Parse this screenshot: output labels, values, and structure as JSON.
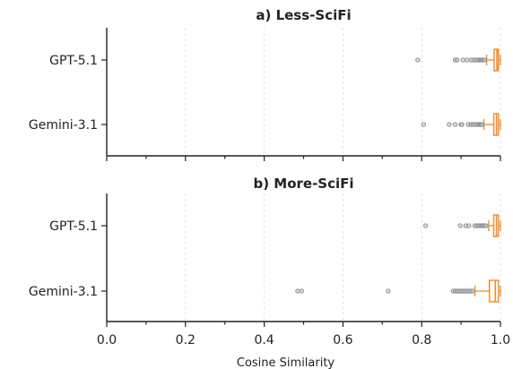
{
  "chart_data": [
    {
      "type": "boxplot",
      "title": "a) Less-SciFi",
      "orientation": "horizontal",
      "categories": [
        "GPT-5.1",
        "Gemini-3.1"
      ],
      "xlim": [
        0.0,
        1.0
      ],
      "grid": "x-dashed",
      "boxes": [
        {
          "name": "GPT-5.1",
          "whislo": 0.965,
          "q1": 0.984,
          "med": 0.991,
          "q3": 0.995,
          "whishi": 1.0,
          "fliers": [
            0.79,
            0.885,
            0.89,
            0.905,
            0.915,
            0.925,
            0.932,
            0.938,
            0.943,
            0.948,
            0.951,
            0.954,
            0.957,
            0.96
          ]
        },
        {
          "name": "Gemini-3.1",
          "whislo": 0.958,
          "q1": 0.983,
          "med": 0.99,
          "q3": 0.995,
          "whishi": 1.0,
          "fliers": [
            0.805,
            0.87,
            0.885,
            0.9,
            0.902,
            0.918,
            0.925,
            0.93,
            0.935,
            0.94,
            0.945,
            0.948,
            0.951,
            0.954
          ]
        }
      ]
    },
    {
      "type": "boxplot",
      "title": "b) More-SciFi",
      "orientation": "horizontal",
      "categories": [
        "GPT-5.1",
        "Gemini-3.1"
      ],
      "xlim": [
        0.0,
        1.0
      ],
      "grid": "x-dashed",
      "xlabel": "Cosine Similarity",
      "xticks": [
        "0.0",
        "0.2",
        "0.4",
        "0.6",
        "0.8",
        "1.0"
      ],
      "boxes": [
        {
          "name": "GPT-5.1",
          "whislo": 0.97,
          "q1": 0.983,
          "med": 0.99,
          "q3": 0.995,
          "whishi": 1.0,
          "fliers": [
            0.81,
            0.898,
            0.912,
            0.92,
            0.935,
            0.94,
            0.945,
            0.95,
            0.953,
            0.956,
            0.96,
            0.963
          ]
        },
        {
          "name": "Gemini-3.1",
          "whislo": 0.935,
          "q1": 0.972,
          "med": 0.987,
          "q3": 0.995,
          "whishi": 1.0,
          "fliers": [
            0.485,
            0.495,
            0.715,
            0.88,
            0.885,
            0.89,
            0.895,
            0.9,
            0.905,
            0.91,
            0.915,
            0.92,
            0.925,
            0.93
          ]
        }
      ]
    }
  ],
  "colors": {
    "box": "#f08a2c",
    "flier_edge": "#888888",
    "spine": "#222222"
  }
}
